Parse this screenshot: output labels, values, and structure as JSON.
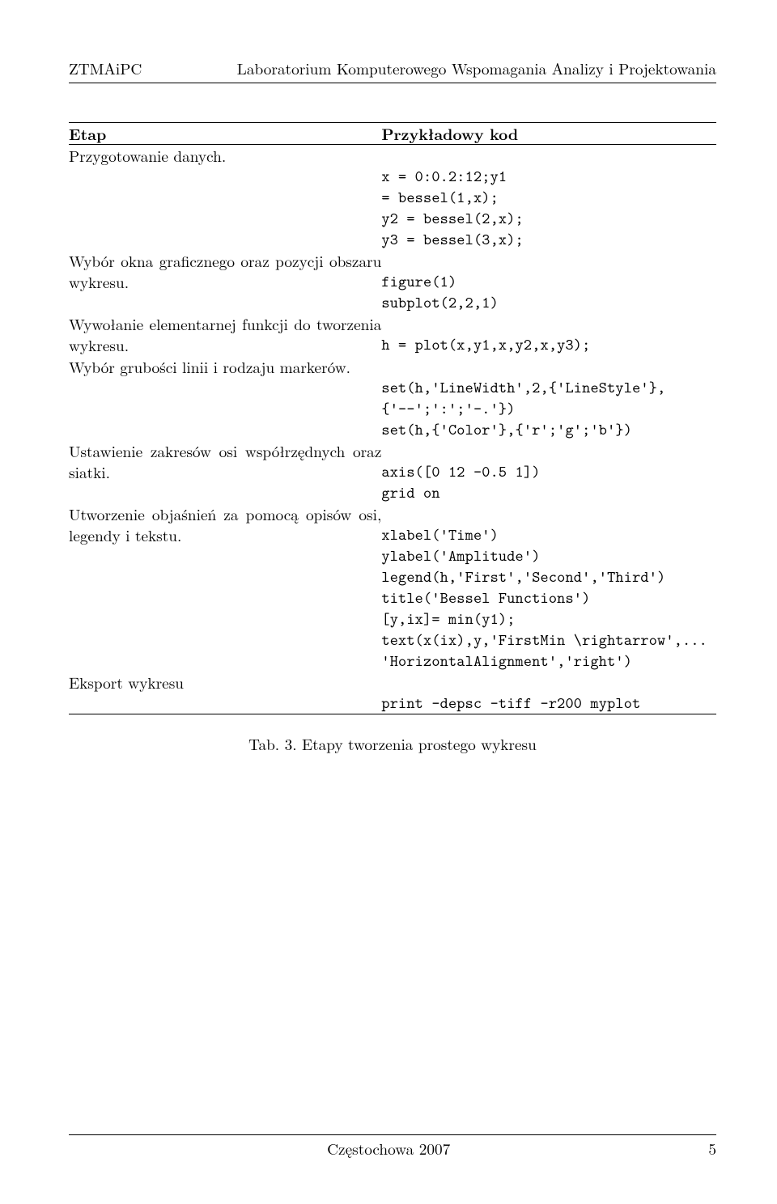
{
  "header": {
    "left": "ZTMAiPC",
    "right": "Laboratorium Komputerowego Wspomagania Analizy i Projektowania"
  },
  "table": {
    "headers": {
      "left": "Etap",
      "right": "Przykładowy kod"
    },
    "rows": [
      {
        "label": "Przygotowanie danych.",
        "code": "\nx = 0:0.2:12;y1\n= bessel(1,x);\ny2 = bessel(2,x);\ny3 = bessel(3,x);\n"
      },
      {
        "label": "Wybór okna graficznego oraz pozycji obszaru wykresu.",
        "code": "\nfigure(1)\nsubplot(2,2,1)\n"
      },
      {
        "label": "Wywołanie elementarnej funkcji do tworzenia wykresu.",
        "code": "\nh = plot(x,y1,x,y2,x,y3);\n"
      },
      {
        "label": "Wybór grubości linii i rodzaju markerów.",
        "code": "\nset(h,'LineWidth',2,{'LineStyle'},\n{'--';':';'-.'})\nset(h,{'Color'},{'r';'g';'b'})\n"
      },
      {
        "label": "Ustawienie zakresów osi współrzędnych oraz siatki.",
        "code": "\naxis([0 12 -0.5 1])\ngrid on\n"
      },
      {
        "label": "Utworzenie objaśnień za pomocą opisów osi, legendy i tekstu.",
        "code": "\nxlabel('Time')\nylabel('Amplitude')\nlegend(h,'First','Second','Third')\ntitle('Bessel Functions')\n[y,ix]= min(y1);\ntext(x(ix),y,'FirstMin \\rightarrow',...\n'HorizontalAlignment','right')\n"
      },
      {
        "label": "Eksport wykresu",
        "code": "\nprint -depsc -tiff -r200 myplot\n"
      }
    ]
  },
  "caption": "Tab. 3. Etapy tworzenia prostego wykresu",
  "footer": {
    "center": "Częstochowa 2007",
    "page": "5"
  }
}
